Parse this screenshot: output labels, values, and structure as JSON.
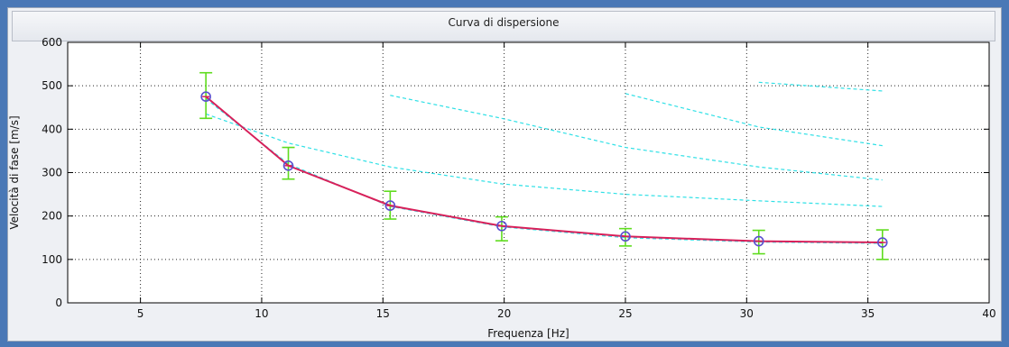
{
  "chart_data": {
    "type": "line",
    "title": "Curva di dispersione",
    "xlabel": "Frequenza [Hz]",
    "ylabel": "Velocità di fase  [m/s]",
    "xlim": [
      2,
      40
    ],
    "ylim": [
      0,
      600
    ],
    "xticks": [
      5,
      10,
      15,
      20,
      25,
      30,
      35,
      40
    ],
    "yticks": [
      0,
      100,
      200,
      300,
      400,
      500,
      600
    ],
    "grid": true,
    "series": [
      {
        "style": "solid-with-markers",
        "color": "#d8205a",
        "marker_color": "#5a4fd0",
        "x": [
          7.7,
          11.1,
          15.3,
          19.9,
          25.0,
          30.5,
          35.6
        ],
        "y": [
          475,
          316,
          224,
          177,
          153,
          142,
          139
        ],
        "error_low": [
          425,
          285,
          193,
          143,
          131,
          113,
          100
        ],
        "error_high": [
          530,
          358,
          257,
          198,
          171,
          167,
          168
        ],
        "error_color": "#5fdc1e"
      },
      {
        "style": "dashed",
        "color": "#2ee0e6",
        "x": [
          7.7,
          11.1,
          15.3,
          19.9,
          25.0,
          30.5,
          35.6
        ],
        "y": [
          470,
          320,
          222,
          175,
          150,
          140,
          137
        ]
      },
      {
        "style": "dashed",
        "color": "#2ee0e6",
        "x": [
          7.7,
          11.1,
          15.3,
          19.9,
          25.0,
          30.5,
          35.6
        ],
        "y": [
          435,
          368,
          313,
          274,
          250,
          235,
          222
        ]
      },
      {
        "style": "dashed",
        "color": "#2ee0e6",
        "x": [
          15.3,
          19.9,
          25.0,
          30.5,
          35.6
        ],
        "y": [
          478,
          425,
          358,
          313,
          283
        ]
      },
      {
        "style": "dashed",
        "color": "#2ee0e6",
        "x": [
          25.0,
          30.5,
          35.6
        ],
        "y": [
          482,
          405,
          362
        ]
      },
      {
        "style": "dashed",
        "color": "#2ee0e6",
        "x": [
          30.5,
          35.6
        ],
        "y": [
          508,
          488
        ]
      }
    ]
  }
}
